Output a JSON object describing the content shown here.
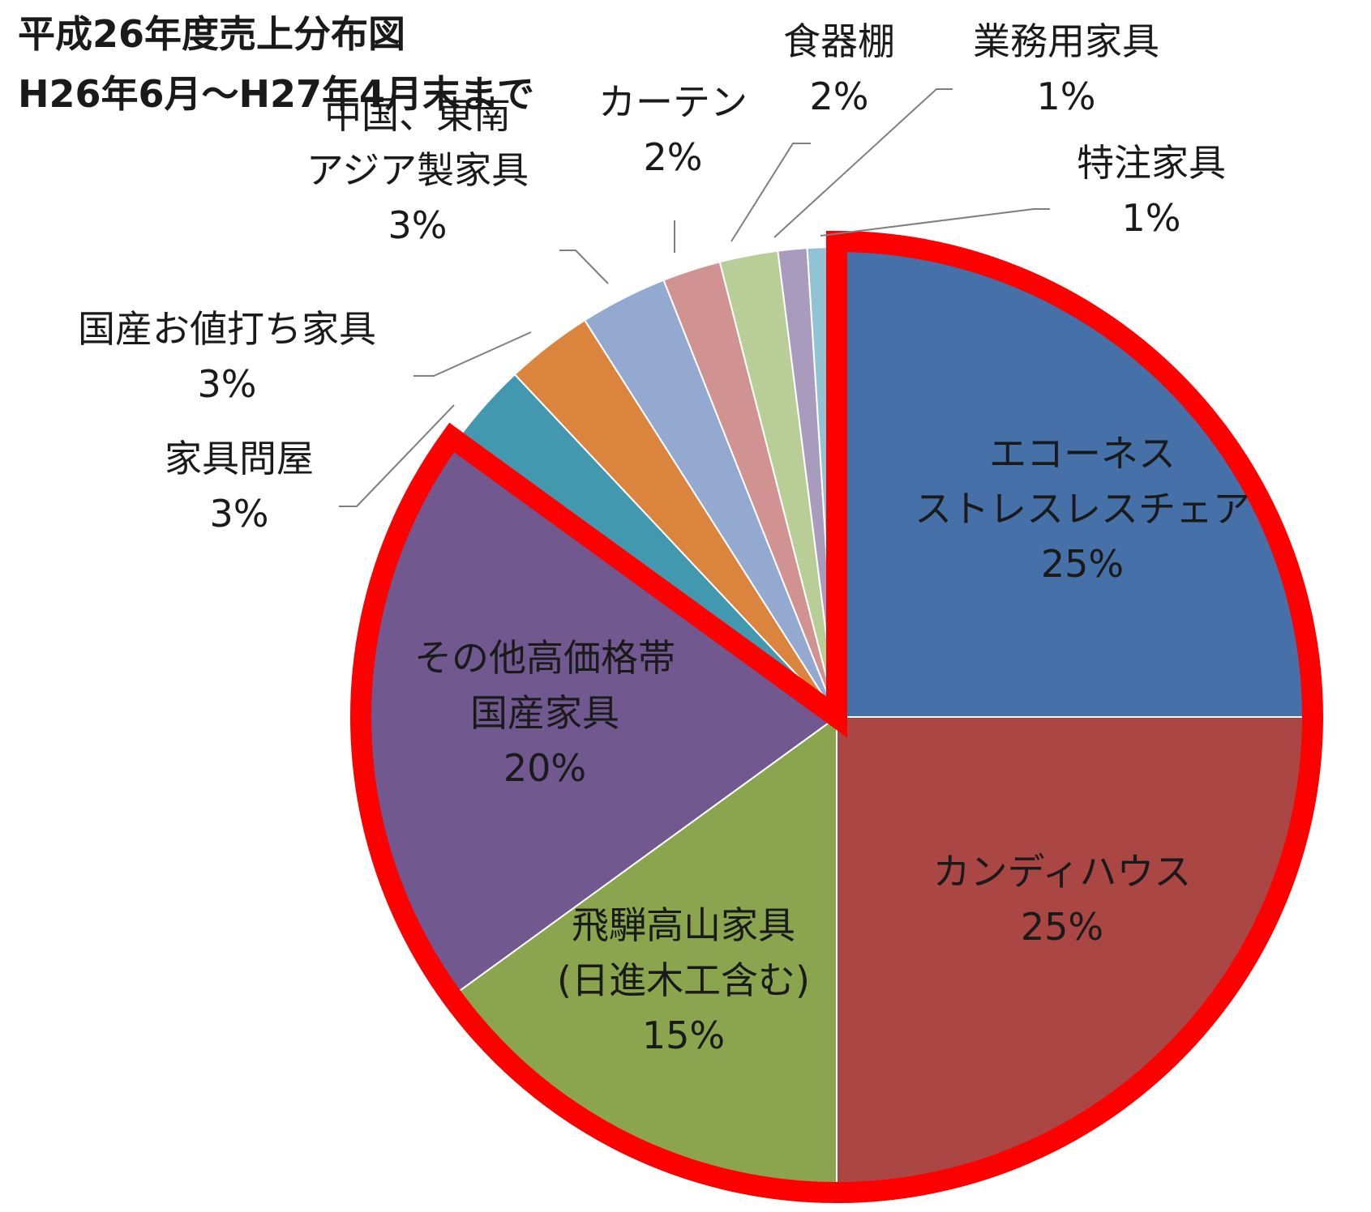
{
  "chart_data": {
    "type": "pie",
    "title": "平成26年度売上分布図",
    "subtitle": "H26年6月～H27年4月末まで",
    "slices": [
      {
        "name": [
          "エコーネス",
          "ストレスレスチェア"
        ],
        "value": 25,
        "label": "25%",
        "color": "#4670A8",
        "highlight": true
      },
      {
        "name": [
          "カンディハウス"
        ],
        "value": 25,
        "label": "25%",
        "color": "#AA4644",
        "highlight": true
      },
      {
        "name": [
          "飛騨高山家具",
          "(日進木工含む)"
        ],
        "value": 15,
        "label": "15%",
        "color": "#8AA54D",
        "highlight": true
      },
      {
        "name": [
          "その他高価格帯",
          "国産家具"
        ],
        "value": 20,
        "label": "20%",
        "color": "#71588F",
        "highlight": true
      },
      {
        "name": [
          "家具問屋"
        ],
        "value": 3,
        "label": "3%",
        "color": "#4298AF",
        "highlight": false
      },
      {
        "name": [
          "国産お値打ち家具"
        ],
        "value": 3,
        "label": "3%",
        "color": "#DB843D",
        "highlight": false
      },
      {
        "name": [
          "中国、東南",
          "アジア製家具"
        ],
        "value": 3,
        "label": "3%",
        "color": "#93A9CF",
        "highlight": false
      },
      {
        "name": [
          "カーテン"
        ],
        "value": 2,
        "label": "2%",
        "color": "#D19392",
        "highlight": false
      },
      {
        "name": [
          "食器棚"
        ],
        "value": 2,
        "label": "2%",
        "color": "#B9CD96",
        "highlight": false
      },
      {
        "name": [
          "業務用家具"
        ],
        "value": 1,
        "label": "1%",
        "color": "#A99BBD",
        "highlight": false
      },
      {
        "name": [
          "特注家具"
        ],
        "value": 1,
        "label": "1%",
        "color": "#91C3D5",
        "highlight": false
      }
    ],
    "highlight_color": "#FF0000"
  }
}
